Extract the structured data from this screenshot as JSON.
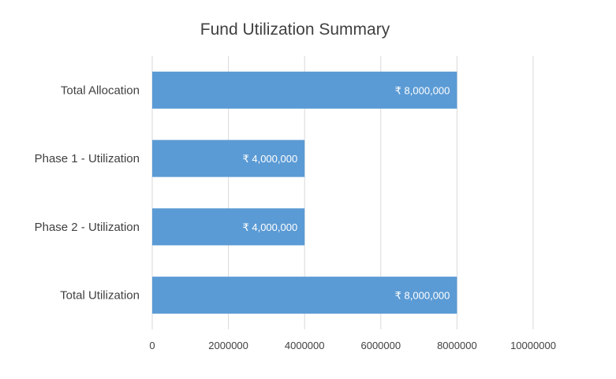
{
  "chart_data": {
    "type": "bar",
    "orientation": "horizontal",
    "title": "Fund Utilization Summary",
    "categories": [
      "Total Allocation",
      "Phase 1 - Utilization",
      "Phase 2 - Utilization",
      "Total Utilization"
    ],
    "values": [
      8000000,
      4000000,
      4000000,
      8000000
    ],
    "data_labels": [
      "₹ 8,000,000",
      "₹ 4,000,000",
      "₹ 4,000,000",
      "₹ 8,000,000"
    ],
    "x_ticks": [
      0,
      2000000,
      4000000,
      6000000,
      8000000,
      10000000
    ],
    "x_tick_labels": [
      "0",
      "2000000",
      "4000000",
      "6000000",
      "8000000",
      "10000000"
    ],
    "xlim": [
      0,
      10000000
    ],
    "xlabel": "",
    "ylabel": "",
    "grid": "vertical",
    "legend": "none",
    "bar_color": "#5b9bd5",
    "gridline_color": "#d9d9d9",
    "text_color": "#404040"
  }
}
